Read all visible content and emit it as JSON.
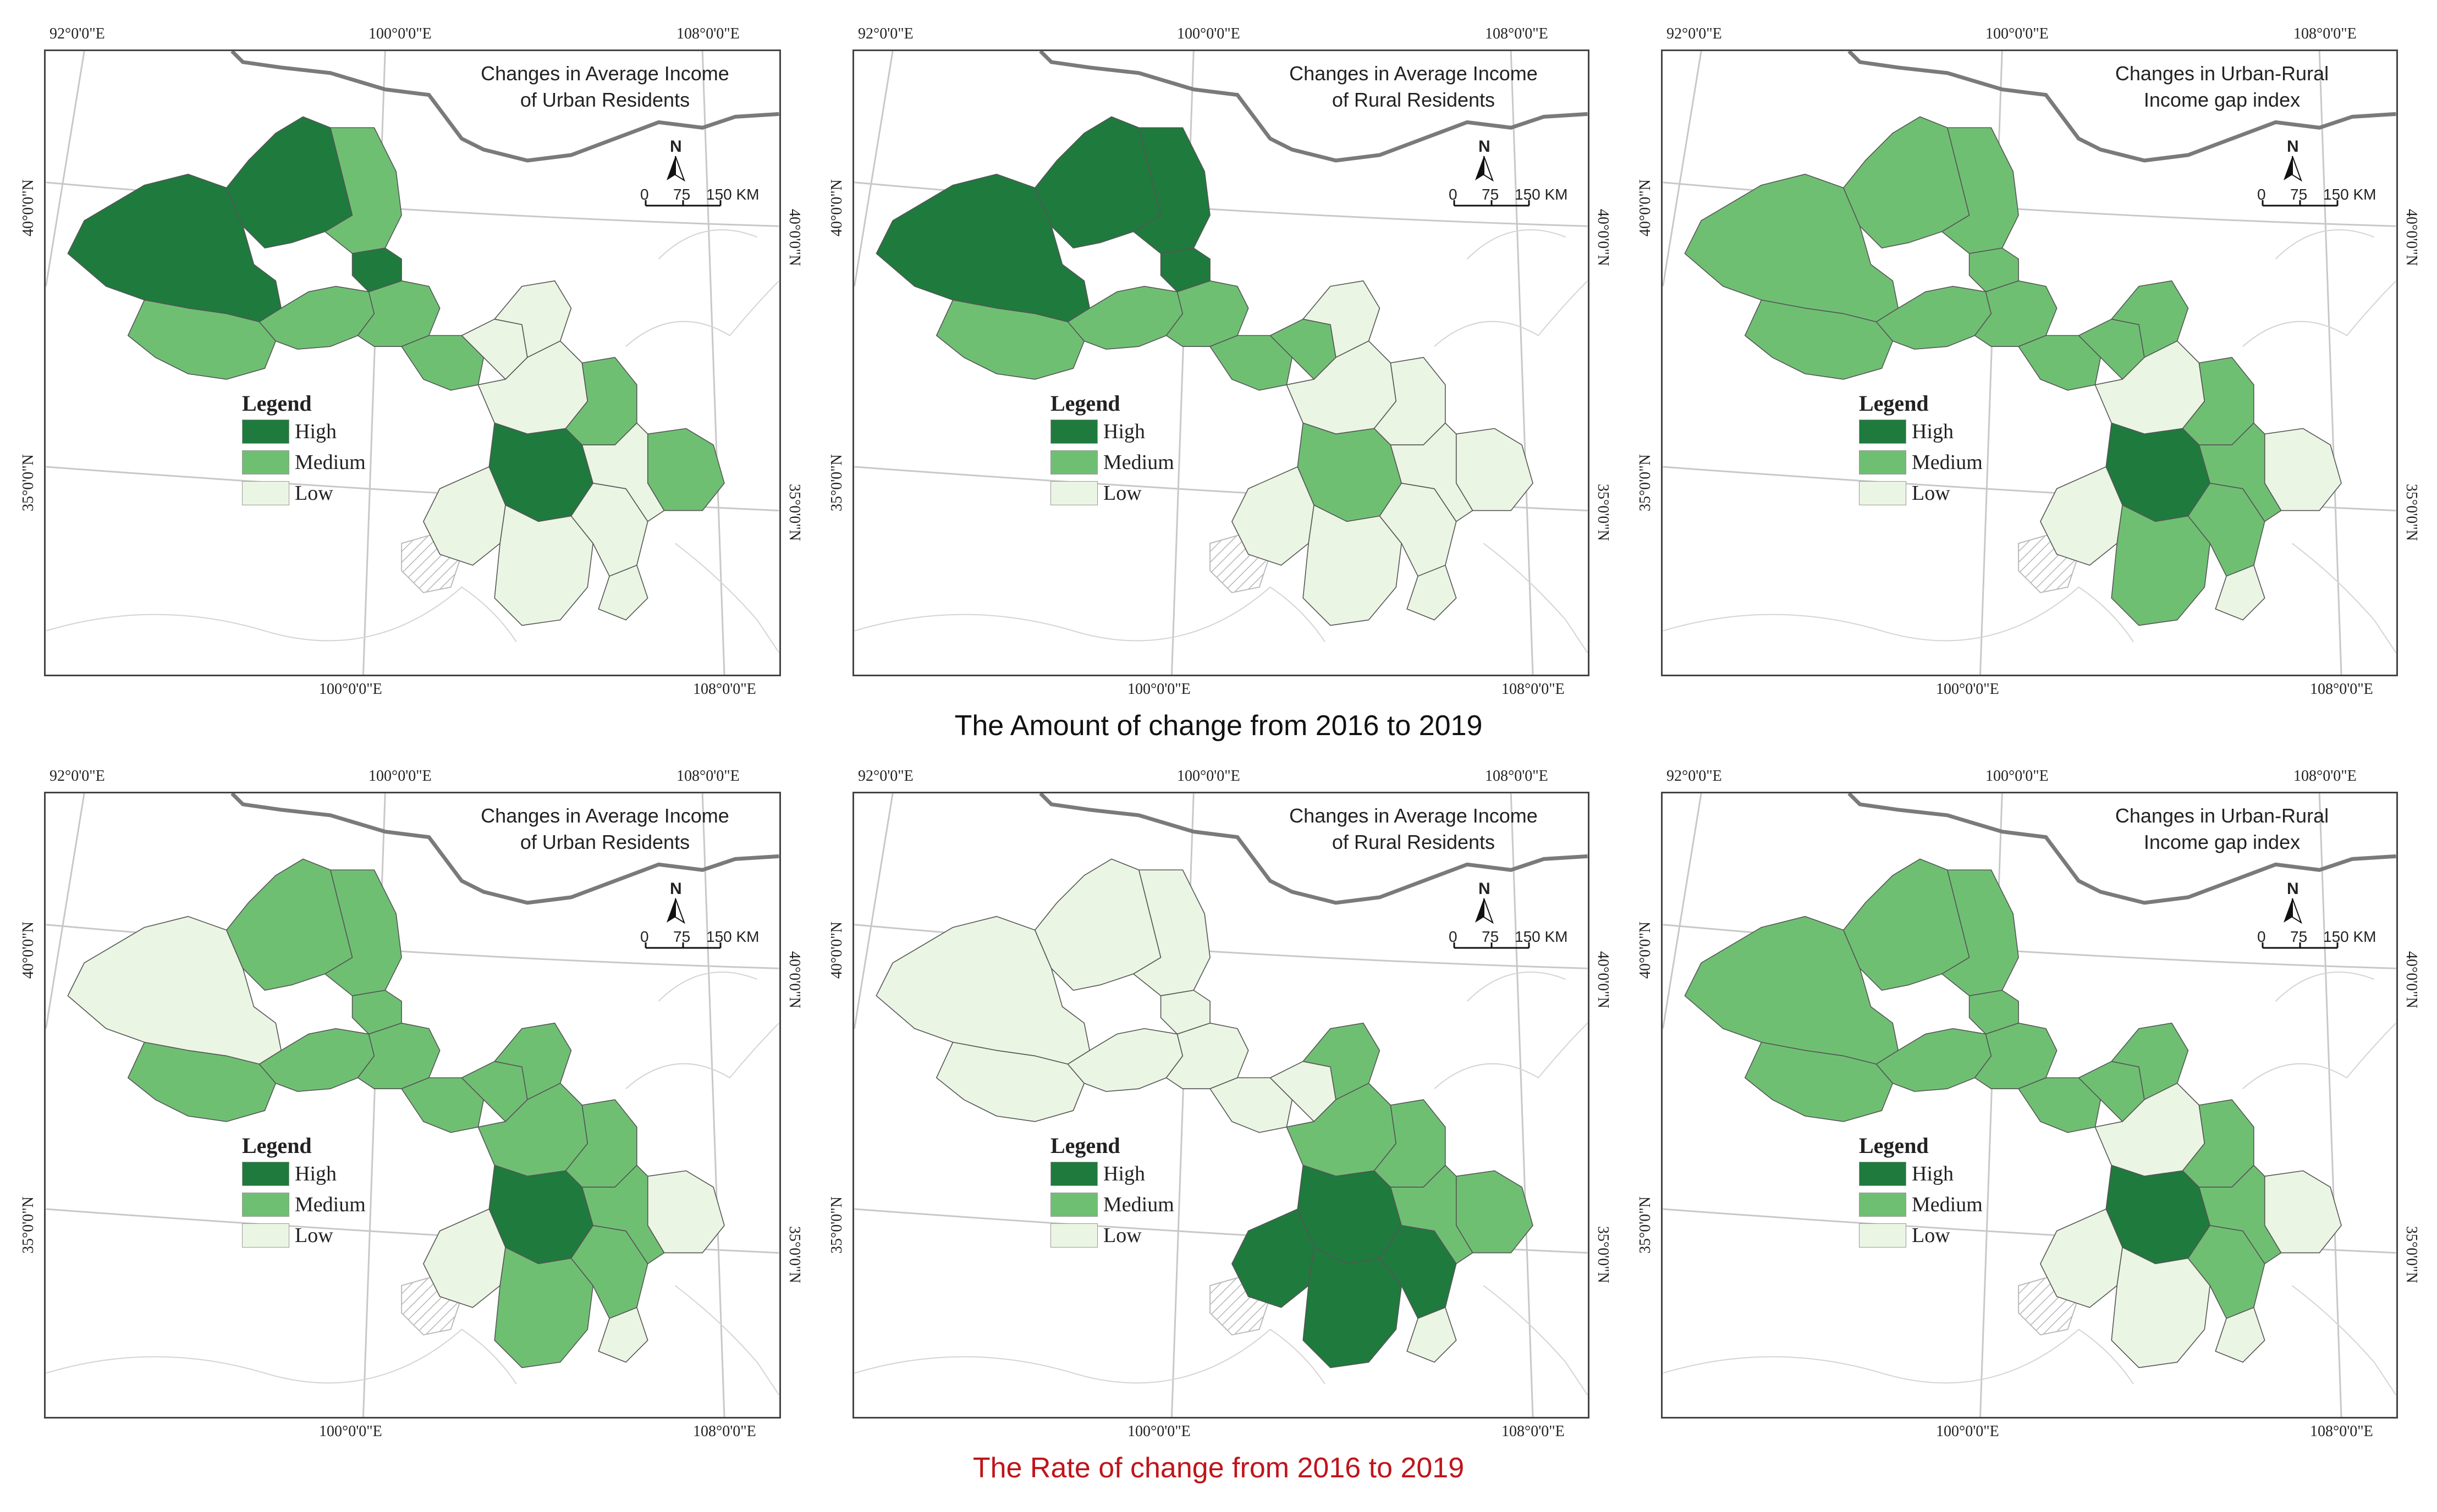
{
  "colors": {
    "high": "#1f7a3e",
    "medium": "#6fbf73",
    "low": "#eaf5e3",
    "border": "#555555",
    "country": "#7a7a7a",
    "grid": "#c8c8c8",
    "hatch": "#b5b5b5"
  },
  "rows": [
    {
      "caption": "The Amount of change from 2016 to 2019",
      "caption_color": "#111111",
      "panels": [
        {
          "title_line1": "Changes in Average Income",
          "title_line2": "of Urban Residents",
          "top_lon_left": "92°0'0\"E",
          "top_lon_mid": "100°0'0\"E",
          "top_lon_right": "108°0'0\"E",
          "bottom_lon_left": "100°0'0\"E",
          "bottom_lon_right": "108°0'0\"E",
          "lat_left_top": "40°0'0\"N",
          "lat_left_bottom": "35°0'0\"N",
          "lat_right_top": "40°0'0\"N",
          "lat_right_bottom": "35°0'0\"N",
          "legend_title": "Legend",
          "legend_high": "High",
          "legend_medium": "Medium",
          "legend_low": "Low",
          "north": "N",
          "scale_0": "0",
          "scale_75": "75",
          "scale_150": "150 KM",
          "regions": [
            "high",
            "high",
            "medium",
            "medium",
            "medium",
            "medium",
            "high",
            "medium",
            "low",
            "low",
            "low",
            "high",
            "medium",
            "low",
            "low",
            "low",
            "medium",
            "low",
            "low"
          ]
        },
        {
          "title_line1": "Changes in Average Income",
          "title_line2": "of Rural Residents",
          "top_lon_left": "92°0'0\"E",
          "top_lon_mid": "100°0'0\"E",
          "top_lon_right": "108°0'0\"E",
          "bottom_lon_left": "100°0'0\"E",
          "bottom_lon_right": "108°0'0\"E",
          "lat_left_top": "40°0'0\"N",
          "lat_left_bottom": "35°0'0\"N",
          "lat_right_top": "40°0'0\"N",
          "lat_right_bottom": "35°0'0\"N",
          "legend_title": "Legend",
          "legend_high": "High",
          "legend_medium": "Medium",
          "legend_low": "Low",
          "north": "N",
          "scale_0": "0",
          "scale_75": "75",
          "scale_150": "150 KM",
          "regions": [
            "high",
            "high",
            "high",
            "medium",
            "medium",
            "medium",
            "high",
            "medium",
            "medium",
            "low",
            "low",
            "medium",
            "low",
            "low",
            "low",
            "low",
            "low",
            "low",
            "low"
          ]
        },
        {
          "title_line1": "Changes in Urban-Rural",
          "title_line2": "Income gap index",
          "top_lon_left": "92°0'0\"E",
          "top_lon_mid": "100°0'0\"E",
          "top_lon_right": "108°0'0\"E",
          "bottom_lon_left": "100°0'0\"E",
          "bottom_lon_right": "108°0'0\"E",
          "lat_left_top": "40°0'0\"N",
          "lat_left_bottom": "35°0'0\"N",
          "lat_right_top": "40°0'0\"N",
          "lat_right_bottom": "35°0'0\"N",
          "legend_title": "Legend",
          "legend_high": "High",
          "legend_medium": "Medium",
          "legend_low": "Low",
          "north": "N",
          "scale_0": "0",
          "scale_75": "75",
          "scale_150": "150 KM",
          "regions": [
            "medium",
            "medium",
            "medium",
            "medium",
            "medium",
            "medium",
            "medium",
            "medium",
            "medium",
            "medium",
            "low",
            "high",
            "medium",
            "low",
            "medium",
            "medium",
            "low",
            "medium",
            "low"
          ]
        }
      ]
    },
    {
      "caption": "The Rate of change from 2016 to 2019",
      "caption_color": "#c0141b",
      "panels": [
        {
          "title_line1": "Changes in Average Income",
          "title_line2": "of Urban Residents",
          "top_lon_left": "92°0'0\"E",
          "top_lon_mid": "100°0'0\"E",
          "top_lon_right": "108°0'0\"E",
          "bottom_lon_left": "100°0'0\"E",
          "bottom_lon_right": "108°0'0\"E",
          "lat_left_top": "40°0'0\"N",
          "lat_left_bottom": "35°0'0\"N",
          "lat_right_top": "40°0'0\"N",
          "lat_right_bottom": "35°0'0\"N",
          "legend_title": "Legend",
          "legend_high": "High",
          "legend_medium": "Medium",
          "legend_low": "Low",
          "north": "N",
          "scale_0": "0",
          "scale_75": "75",
          "scale_150": "150 KM",
          "regions": [
            "low",
            "medium",
            "medium",
            "medium",
            "medium",
            "medium",
            "medium",
            "medium",
            "medium",
            "medium",
            "medium",
            "high",
            "medium",
            "low",
            "medium",
            "medium",
            "low",
            "medium",
            "low"
          ]
        },
        {
          "title_line1": "Changes in Average Income",
          "title_line2": "of Rural Residents",
          "top_lon_left": "92°0'0\"E",
          "top_lon_mid": "100°0'0\"E",
          "top_lon_right": "108°0'0\"E",
          "bottom_lon_left": "100°0'0\"E",
          "bottom_lon_right": "108°0'0\"E",
          "lat_left_top": "40°0'0\"N",
          "lat_left_bottom": "35°0'0\"N",
          "lat_right_top": "40°0'0\"N",
          "lat_right_bottom": "35°0'0\"N",
          "legend_title": "Legend",
          "legend_high": "High",
          "legend_medium": "Medium",
          "legend_low": "Low",
          "north": "N",
          "scale_0": "0",
          "scale_75": "75",
          "scale_150": "150 KM",
          "regions": [
            "low",
            "low",
            "low",
            "low",
            "low",
            "low",
            "low",
            "low",
            "low",
            "medium",
            "medium",
            "high",
            "medium",
            "high",
            "high",
            "high",
            "medium",
            "medium",
            "low"
          ]
        },
        {
          "title_line1": "Changes in Urban-Rural",
          "title_line2": "Income gap index",
          "top_lon_left": "92°0'0\"E",
          "top_lon_mid": "100°0'0\"E",
          "top_lon_right": "108°0'0\"E",
          "bottom_lon_left": "100°0'0\"E",
          "bottom_lon_right": "108°0'0\"E",
          "lat_left_top": "40°0'0\"N",
          "lat_left_bottom": "35°0'0\"N",
          "lat_right_top": "40°0'0\"N",
          "lat_right_bottom": "35°0'0\"N",
          "legend_title": "Legend",
          "legend_high": "High",
          "legend_medium": "Medium",
          "legend_low": "Low",
          "north": "N",
          "scale_0": "0",
          "scale_75": "75",
          "scale_150": "150 KM",
          "regions": [
            "medium",
            "medium",
            "medium",
            "medium",
            "medium",
            "medium",
            "medium",
            "medium",
            "medium",
            "medium",
            "low",
            "high",
            "medium",
            "low",
            "low",
            "medium",
            "low",
            "medium",
            "low"
          ]
        }
      ]
    }
  ]
}
